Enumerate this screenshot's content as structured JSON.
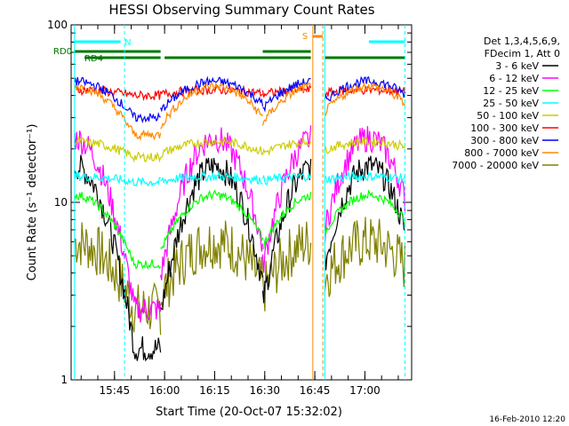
{
  "chart_data": {
    "type": "line",
    "title": "HESSI Observing Summary Count Rates",
    "xlabel": "Start Time (20-Oct-07 15:32:02)",
    "ylabel": "Count Rate (s⁻¹ detector⁻¹)",
    "ylog": true,
    "ylim": [
      1,
      100
    ],
    "xlim_minutes": [
      15.53,
      17.23
    ],
    "x_ticks": [
      "15:45",
      "16:00",
      "16:15",
      "16:30",
      "16:45",
      "17:00"
    ],
    "y_ticks": [
      "1",
      "10",
      "100"
    ],
    "footer": "16-Feb-2010 12:20",
    "legend_header": [
      "Det 1,3,4,5,6,9,",
      "FDecim 1, Att 0"
    ],
    "legend_position": "right",
    "series": [
      {
        "name": "3 - 6 keV",
        "color": "#000000",
        "base": 1.5,
        "peak": 16
      },
      {
        "name": "6 - 12 keV",
        "color": "#ff00ff",
        "base": 2.5,
        "peak": 23
      },
      {
        "name": "12 - 25 keV",
        "color": "#00ff00",
        "base": 4.5,
        "peak": 11
      },
      {
        "name": "25 - 50 keV",
        "color": "#00ffff",
        "base": 13,
        "peak": 14
      },
      {
        "name": "50 - 100 keV",
        "color": "#cccc00",
        "base": 18,
        "peak": 22
      },
      {
        "name": "100 - 300 keV",
        "color": "#ff0000",
        "base": 40,
        "peak": 43
      },
      {
        "name": "300 - 800 keV",
        "color": "#0000ff",
        "base": 30,
        "peak": 48
      },
      {
        "name": "800 - 7000 keV",
        "color": "#ff8800",
        "base": 24,
        "peak": 45
      },
      {
        "name": "7000 - 20000 keV",
        "color": "#808000",
        "base": 2.5,
        "peak": 6
      }
    ],
    "segments_hours": [
      {
        "start": 15.55,
        "end": 15.98,
        "peak": 15.55
      },
      {
        "start": 15.98,
        "end": 16.49,
        "peak": 16.25
      },
      {
        "start": 16.49,
        "end": 16.73,
        "peak": 16.75
      },
      {
        "start": 16.8,
        "end": 17.2,
        "peak": 17.02
      }
    ],
    "annotations": [
      {
        "label": "N",
        "color": "#00ffff",
        "start": 15.55,
        "end": 15.8
      },
      {
        "label": "S",
        "color": "#ff8800",
        "start": 16.74,
        "end": 16.79
      },
      {
        "label": "RD0",
        "color": "#007700",
        "start": 15.55,
        "end": 17.2
      },
      {
        "label": "RD4",
        "color": "#007700",
        "start": 15.6,
        "end": 15.98
      }
    ]
  }
}
